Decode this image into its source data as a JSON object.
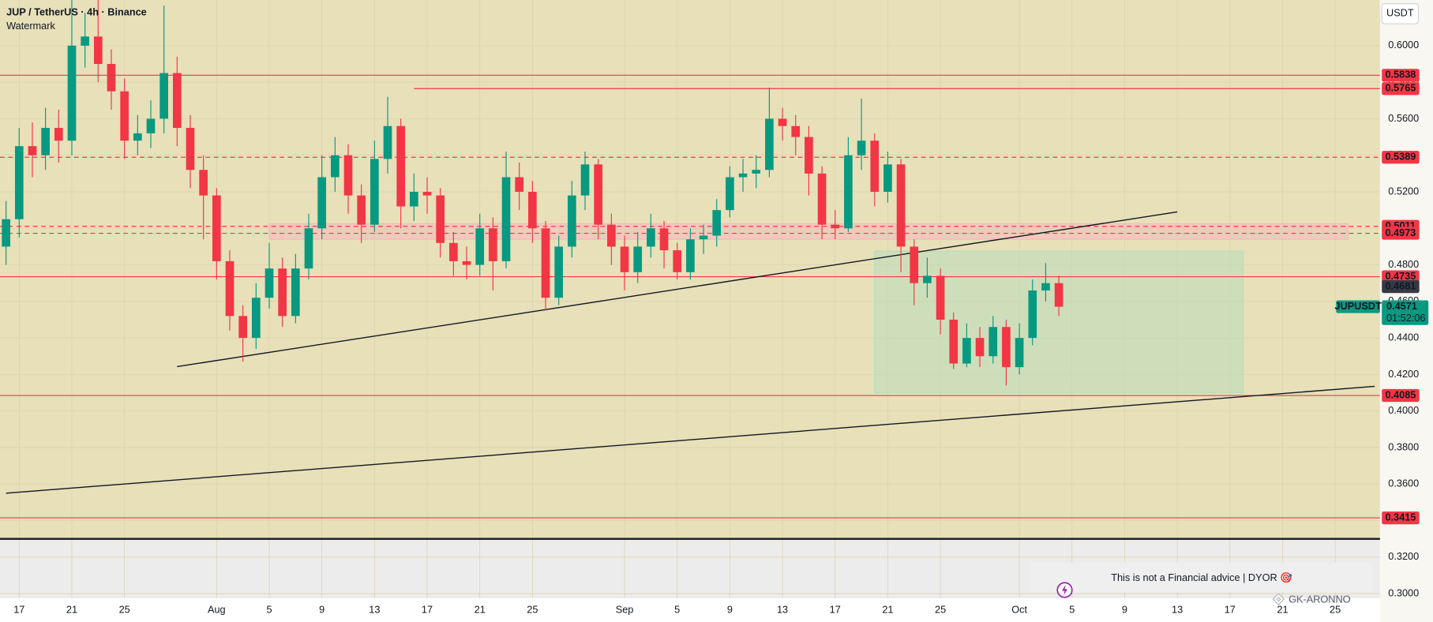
{
  "header": {
    "title": "JUP / TetherUS · 4h · Binance",
    "subtitle": "Watermark",
    "currency": "USDT"
  },
  "chart_data": {
    "type": "candlestick",
    "x": [
      "Jul 16",
      "Jul 17",
      "Jul 18",
      "Jul 19",
      "Jul 20",
      "Jul 21",
      "Jul 22",
      "Jul 23",
      "Jul 24",
      "Jul 25",
      "Jul 26",
      "Jul 27",
      "Jul 28",
      "Jul 29",
      "Jul 30",
      "Jul 31",
      "Aug 1",
      "Aug 2",
      "Aug 3",
      "Aug 4",
      "Aug 5",
      "Aug 6",
      "Aug 7",
      "Aug 8",
      "Aug 9",
      "Aug 10",
      "Aug 11",
      "Aug 12",
      "Aug 13",
      "Aug 14",
      "Aug 15",
      "Aug 16",
      "Aug 17",
      "Aug 18",
      "Aug 19",
      "Aug 20",
      "Aug 21",
      "Aug 22",
      "Aug 23",
      "Aug 24",
      "Aug 25",
      "Aug 26",
      "Aug 27",
      "Aug 28",
      "Aug 29",
      "Aug 30",
      "Aug 31",
      "Sep 1",
      "Sep 2",
      "Sep 3",
      "Sep 4",
      "Sep 5",
      "Sep 6",
      "Sep 7",
      "Sep 8",
      "Sep 9",
      "Sep 10",
      "Sep 11",
      "Sep 12",
      "Sep 13",
      "Sep 14",
      "Sep 15",
      "Sep 16",
      "Sep 17",
      "Sep 18",
      "Sep 19",
      "Sep 20",
      "Sep 21",
      "Sep 22",
      "Sep 23",
      "Sep 24",
      "Sep 25",
      "Sep 26",
      "Sep 27",
      "Sep 28",
      "Sep 29",
      "Sep 30",
      "Oct 1",
      "Oct 2",
      "Oct 3",
      "Oct 4"
    ],
    "open": [
      0.49,
      0.505,
      0.545,
      0.54,
      0.555,
      0.548,
      0.6,
      0.605,
      0.59,
      0.575,
      0.548,
      0.552,
      0.56,
      0.585,
      0.555,
      0.532,
      0.518,
      0.482,
      0.452,
      0.44,
      0.462,
      0.478,
      0.452,
      0.478,
      0.5,
      0.528,
      0.54,
      0.518,
      0.502,
      0.538,
      0.556,
      0.512,
      0.52,
      0.518,
      0.492,
      0.482,
      0.48,
      0.5,
      0.482,
      0.528,
      0.52,
      0.5,
      0.462,
      0.49,
      0.518,
      0.535,
      0.502,
      0.49,
      0.476,
      0.49,
      0.5,
      0.488,
      0.476,
      0.494,
      0.496,
      0.51,
      0.528,
      0.53,
      0.532,
      0.56,
      0.556,
      0.55,
      0.53,
      0.502,
      0.5,
      0.54,
      0.548,
      0.52,
      0.535,
      0.49,
      0.47,
      0.474,
      0.45,
      0.426,
      0.44,
      0.43,
      0.446,
      0.424,
      0.44,
      0.466,
      0.47
    ],
    "high": [
      0.515,
      0.555,
      0.558,
      0.566,
      0.565,
      0.632,
      0.618,
      0.628,
      0.598,
      0.582,
      0.562,
      0.57,
      0.622,
      0.594,
      0.562,
      0.54,
      0.522,
      0.488,
      0.458,
      0.47,
      0.492,
      0.484,
      0.486,
      0.508,
      0.54,
      0.55,
      0.546,
      0.524,
      0.548,
      0.572,
      0.56,
      0.53,
      0.528,
      0.522,
      0.498,
      0.49,
      0.508,
      0.506,
      0.542,
      0.536,
      0.526,
      0.504,
      0.496,
      0.526,
      0.542,
      0.538,
      0.508,
      0.496,
      0.498,
      0.508,
      0.504,
      0.492,
      0.5,
      0.502,
      0.516,
      0.534,
      0.538,
      0.54,
      0.577,
      0.566,
      0.562,
      0.556,
      0.534,
      0.51,
      0.55,
      0.571,
      0.552,
      0.542,
      0.538,
      0.494,
      0.484,
      0.478,
      0.454,
      0.448,
      0.446,
      0.452,
      0.45,
      0.448,
      0.472,
      0.481,
      0.474
    ],
    "low": [
      0.48,
      0.495,
      0.528,
      0.532,
      0.536,
      0.54,
      0.588,
      0.58,
      0.565,
      0.538,
      0.54,
      0.544,
      0.552,
      0.545,
      0.522,
      0.494,
      0.472,
      0.444,
      0.427,
      0.434,
      0.456,
      0.446,
      0.448,
      0.472,
      0.494,
      0.52,
      0.508,
      0.492,
      0.498,
      0.53,
      0.5,
      0.504,
      0.508,
      0.484,
      0.474,
      0.472,
      0.474,
      0.466,
      0.478,
      0.51,
      0.492,
      0.455,
      0.458,
      0.484,
      0.51,
      0.494,
      0.48,
      0.466,
      0.47,
      0.484,
      0.478,
      0.472,
      0.472,
      0.486,
      0.49,
      0.506,
      0.52,
      0.522,
      0.528,
      0.548,
      0.54,
      0.518,
      0.494,
      0.494,
      0.498,
      0.532,
      0.512,
      0.514,
      0.476,
      0.458,
      0.462,
      0.442,
      0.423,
      0.424,
      0.424,
      0.426,
      0.414,
      0.42,
      0.436,
      0.46,
      0.452
    ],
    "close": [
      0.505,
      0.545,
      0.54,
      0.555,
      0.548,
      0.6,
      0.605,
      0.59,
      0.575,
      0.548,
      0.552,
      0.56,
      0.585,
      0.555,
      0.532,
      0.518,
      0.482,
      0.452,
      0.44,
      0.462,
      0.478,
      0.452,
      0.478,
      0.5,
      0.528,
      0.54,
      0.518,
      0.502,
      0.538,
      0.556,
      0.512,
      0.52,
      0.518,
      0.492,
      0.482,
      0.48,
      0.5,
      0.482,
      0.528,
      0.52,
      0.5,
      0.462,
      0.49,
      0.518,
      0.535,
      0.502,
      0.49,
      0.476,
      0.49,
      0.5,
      0.488,
      0.476,
      0.494,
      0.496,
      0.51,
      0.528,
      0.53,
      0.532,
      0.56,
      0.556,
      0.55,
      0.53,
      0.502,
      0.5,
      0.54,
      0.548,
      0.52,
      0.535,
      0.49,
      0.47,
      0.474,
      0.45,
      0.426,
      0.44,
      0.43,
      0.446,
      0.424,
      0.44,
      0.466,
      0.47,
      0.4571
    ],
    "up_color": "#089981",
    "down_color": "#f23645",
    "xlim": [
      "Jul 16",
      "Oct 29"
    ],
    "xticks": [
      {
        "value": "Jul 17",
        "label": "17"
      },
      {
        "value": "Jul 21",
        "label": "21"
      },
      {
        "value": "Jul 25",
        "label": "25"
      },
      {
        "value": "Aug 1",
        "label": "Aug"
      },
      {
        "value": "Aug 5",
        "label": "5"
      },
      {
        "value": "Aug 9",
        "label": "9"
      },
      {
        "value": "Aug 13",
        "label": "13"
      },
      {
        "value": "Aug 17",
        "label": "17"
      },
      {
        "value": "Aug 21",
        "label": "21"
      },
      {
        "value": "Aug 25",
        "label": "25"
      },
      {
        "value": "Sep 1",
        "label": "Sep"
      },
      {
        "value": "Sep 5",
        "label": "5"
      },
      {
        "value": "Sep 9",
        "label": "9"
      },
      {
        "value": "Sep 13",
        "label": "13"
      },
      {
        "value": "Sep 17",
        "label": "17"
      },
      {
        "value": "Sep 21",
        "label": "21"
      },
      {
        "value": "Sep 25",
        "label": "25"
      },
      {
        "value": "Oct 1",
        "label": "Oct"
      },
      {
        "value": "Oct 5",
        "label": "5"
      },
      {
        "value": "Oct 9",
        "label": "9"
      },
      {
        "value": "Oct 13",
        "label": "13"
      },
      {
        "value": "Oct 17",
        "label": "17"
      },
      {
        "value": "Oct 21",
        "label": "21"
      },
      {
        "value": "Oct 25",
        "label": "25"
      }
    ],
    "ylim": [
      0.2975,
      0.625
    ],
    "yticks": [
      {
        "value": 0.3,
        "label": "0.3000"
      },
      {
        "value": 0.32,
        "label": "0.3200"
      },
      {
        "value": 0.34,
        "label": "0.3400"
      },
      {
        "value": 0.36,
        "label": "0.3600"
      },
      {
        "value": 0.38,
        "label": "0.3800"
      },
      {
        "value": 0.4,
        "label": "0.4000"
      },
      {
        "value": 0.42,
        "label": "0.4200"
      },
      {
        "value": 0.44,
        "label": "0.4400"
      },
      {
        "value": 0.46,
        "label": "0.4600"
      },
      {
        "value": 0.48,
        "label": "0.4800"
      },
      {
        "value": 0.5,
        "label": "0.5000"
      },
      {
        "value": 0.52,
        "label": "0.5200"
      },
      {
        "value": 0.54,
        "label": "0.5400"
      },
      {
        "value": 0.56,
        "label": "0.5600"
      },
      {
        "value": 0.58,
        "label": "0.5800"
      },
      {
        "value": 0.6,
        "label": "0.6000"
      }
    ],
    "grid": true,
    "zones": [
      {
        "x": [
          "Aug 5",
          "Oct 26"
        ],
        "values": [
          0.5025,
          0.494
        ],
        "color": "#f4b9bd"
      },
      {
        "x": [
          "Sep 20",
          "Oct 18"
        ],
        "values": [
          0.4875,
          0.41
        ],
        "color": "#b9dcbc"
      }
    ],
    "levels": [
      {
        "value": 0.5838,
        "style": "solid",
        "color": "#f23645"
      },
      {
        "value": 0.5765,
        "style": "solid",
        "color": "#f23645",
        "start": "Aug 16"
      },
      {
        "value": 0.5389,
        "style": "dashed",
        "color": "#f23645"
      },
      {
        "value": 0.5011,
        "style": "dashed",
        "color": "#f23645"
      },
      {
        "value": 0.4973,
        "style": "dashed",
        "color": "#f23645"
      },
      {
        "value": 0.4735,
        "style": "solid",
        "color": "#f23645"
      },
      {
        "value": 0.4085,
        "style": "solid",
        "color": "#f23645"
      },
      {
        "value": 0.3415,
        "style": "solid",
        "color": "#f23645"
      }
    ],
    "trendlines": [
      {
        "x": [
          "Jul 29",
          "Oct 13"
        ],
        "values": [
          0.4243,
          0.509
        ],
        "color": "#131722"
      },
      {
        "x": [
          "Jul 16",
          "Oct 28"
        ],
        "values": [
          0.355,
          0.4135
        ],
        "color": "#131722"
      }
    ],
    "price_marks": [
      {
        "value": 0.4681,
        "color": "#363a45"
      }
    ],
    "last_price": {
      "symbol": "JUPUSDT",
      "value": 0.4571,
      "countdown": "01:52:06",
      "color": "#089981"
    }
  },
  "footer": {
    "disclaimer": "This is not a Financial advice | DYOR 🎯",
    "watermark": "GK-ARONNO"
  }
}
